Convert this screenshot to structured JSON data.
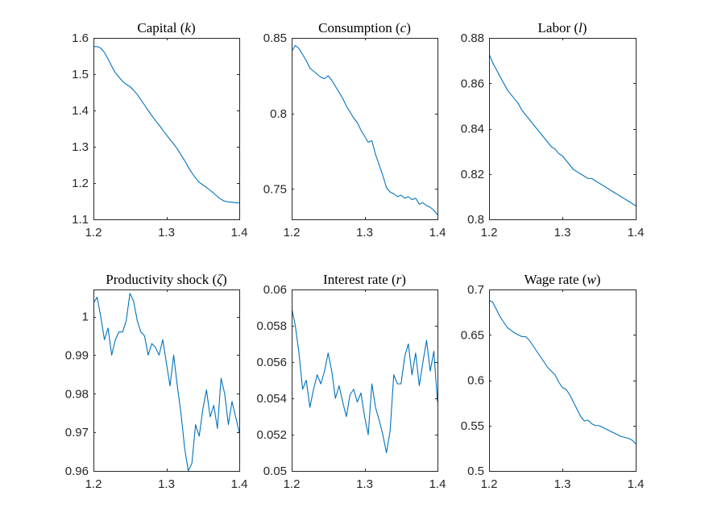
{
  "colors": {
    "line": "#0072BD",
    "axis": "#262626",
    "background": "#ffffff"
  },
  "chart_data": [
    {
      "type": "line",
      "title": {
        "name": "Capital",
        "symbol": "k"
      },
      "xlim": [
        1.2,
        1.4
      ],
      "ylim": [
        1.1,
        1.6
      ],
      "xticks": [
        1.2,
        1.3,
        1.4
      ],
      "xtick_labels": [
        "1.2",
        "1.3",
        "1.4"
      ],
      "yticks": [
        1.1,
        1.2,
        1.3,
        1.4,
        1.5,
        1.6
      ],
      "ytick_labels": [
        "1.1",
        "1.2",
        "1.3",
        "1.4",
        "1.5",
        "1.6"
      ],
      "x": [
        1.2,
        1.205,
        1.21,
        1.215,
        1.22,
        1.225,
        1.23,
        1.235,
        1.24,
        1.245,
        1.25,
        1.255,
        1.26,
        1.265,
        1.27,
        1.275,
        1.28,
        1.285,
        1.29,
        1.295,
        1.3,
        1.305,
        1.31,
        1.315,
        1.32,
        1.325,
        1.33,
        1.335,
        1.34,
        1.345,
        1.35,
        1.355,
        1.36,
        1.365,
        1.37,
        1.375,
        1.38,
        1.385,
        1.39,
        1.395,
        1.4
      ],
      "y": [
        1.576,
        1.576,
        1.572,
        1.56,
        1.542,
        1.522,
        1.504,
        1.492,
        1.48,
        1.472,
        1.466,
        1.456,
        1.444,
        1.43,
        1.415,
        1.4,
        1.386,
        1.372,
        1.36,
        1.346,
        1.333,
        1.32,
        1.308,
        1.294,
        1.278,
        1.262,
        1.244,
        1.228,
        1.214,
        1.202,
        1.195,
        1.188,
        1.18,
        1.172,
        1.163,
        1.155,
        1.15,
        1.148,
        1.147,
        1.146,
        1.145
      ]
    },
    {
      "type": "line",
      "title": {
        "name": "Consumption",
        "symbol": "c"
      },
      "xlim": [
        1.2,
        1.4
      ],
      "ylim": [
        0.73,
        0.85
      ],
      "xticks": [
        1.2,
        1.3,
        1.4
      ],
      "xtick_labels": [
        "1.2",
        "1.3",
        "1.4"
      ],
      "yticks": [
        0.75,
        0.8,
        0.85
      ],
      "ytick_labels": [
        "0.75",
        "0.8",
        "0.85"
      ],
      "x": [
        1.2,
        1.205,
        1.21,
        1.215,
        1.22,
        1.225,
        1.23,
        1.235,
        1.24,
        1.245,
        1.25,
        1.255,
        1.26,
        1.265,
        1.27,
        1.275,
        1.28,
        1.285,
        1.29,
        1.295,
        1.3,
        1.305,
        1.31,
        1.315,
        1.32,
        1.325,
        1.33,
        1.335,
        1.34,
        1.345,
        1.35,
        1.355,
        1.36,
        1.365,
        1.37,
        1.375,
        1.38,
        1.385,
        1.39,
        1.395,
        1.4
      ],
      "y": [
        0.841,
        0.845,
        0.843,
        0.839,
        0.835,
        0.83,
        0.828,
        0.826,
        0.824,
        0.823,
        0.825,
        0.822,
        0.818,
        0.814,
        0.81,
        0.805,
        0.801,
        0.797,
        0.794,
        0.789,
        0.785,
        0.781,
        0.782,
        0.773,
        0.766,
        0.759,
        0.751,
        0.748,
        0.747,
        0.745,
        0.746,
        0.744,
        0.745,
        0.743,
        0.744,
        0.74,
        0.741,
        0.739,
        0.738,
        0.736,
        0.733
      ]
    },
    {
      "type": "line",
      "title": {
        "name": "Labor",
        "symbol": "l"
      },
      "xlim": [
        1.2,
        1.4
      ],
      "ylim": [
        0.8,
        0.88
      ],
      "xticks": [
        1.2,
        1.3,
        1.4
      ],
      "xtick_labels": [
        "1.2",
        "1.3",
        "1.4"
      ],
      "yticks": [
        0.8,
        0.82,
        0.84,
        0.86,
        0.88
      ],
      "ytick_labels": [
        "0.8",
        "0.82",
        "0.84",
        "0.86",
        "0.88"
      ],
      "x": [
        1.2,
        1.205,
        1.21,
        1.215,
        1.22,
        1.225,
        1.23,
        1.235,
        1.24,
        1.245,
        1.25,
        1.255,
        1.26,
        1.265,
        1.27,
        1.275,
        1.28,
        1.285,
        1.29,
        1.295,
        1.3,
        1.305,
        1.31,
        1.315,
        1.32,
        1.325,
        1.33,
        1.335,
        1.34,
        1.345,
        1.35,
        1.355,
        1.36,
        1.365,
        1.37,
        1.375,
        1.38,
        1.385,
        1.39,
        1.395,
        1.4
      ],
      "y": [
        0.873,
        0.869,
        0.866,
        0.863,
        0.86,
        0.857,
        0.855,
        0.853,
        0.851,
        0.848,
        0.846,
        0.844,
        0.842,
        0.84,
        0.838,
        0.836,
        0.834,
        0.832,
        0.831,
        0.829,
        0.828,
        0.826,
        0.824,
        0.822,
        0.821,
        0.82,
        0.819,
        0.818,
        0.818,
        0.817,
        0.816,
        0.815,
        0.814,
        0.813,
        0.812,
        0.811,
        0.81,
        0.809,
        0.808,
        0.807,
        0.806
      ]
    },
    {
      "type": "line",
      "title": {
        "name": "Productivity shock",
        "symbol": "ζ"
      },
      "xlim": [
        1.2,
        1.4
      ],
      "ylim": [
        0.96,
        1.007
      ],
      "xticks": [
        1.2,
        1.3,
        1.4
      ],
      "xtick_labels": [
        "1.2",
        "1.3",
        "1.4"
      ],
      "yticks": [
        0.96,
        0.97,
        0.98,
        0.99,
        1.0
      ],
      "ytick_labels": [
        "0.96",
        "0.97",
        "0.98",
        "0.99",
        "1"
      ],
      "x": [
        1.2,
        1.205,
        1.21,
        1.215,
        1.22,
        1.225,
        1.23,
        1.235,
        1.24,
        1.245,
        1.25,
        1.255,
        1.26,
        1.265,
        1.27,
        1.275,
        1.28,
        1.285,
        1.29,
        1.295,
        1.3,
        1.305,
        1.31,
        1.315,
        1.32,
        1.325,
        1.33,
        1.335,
        1.34,
        1.345,
        1.35,
        1.355,
        1.36,
        1.365,
        1.37,
        1.375,
        1.38,
        1.385,
        1.39,
        1.395,
        1.4
      ],
      "y": [
        1.0035,
        1.005,
        1.0,
        0.994,
        0.997,
        0.99,
        0.994,
        0.996,
        0.996,
        0.999,
        1.006,
        1.004,
        0.999,
        0.996,
        0.995,
        0.99,
        0.993,
        0.992,
        0.99,
        0.994,
        0.988,
        0.982,
        0.99,
        0.982,
        0.975,
        0.966,
        0.96,
        0.962,
        0.972,
        0.969,
        0.976,
        0.981,
        0.974,
        0.977,
        0.971,
        0.984,
        0.98,
        0.972,
        0.978,
        0.974,
        0.97
      ]
    },
    {
      "type": "line",
      "title": {
        "name": "Interest rate",
        "symbol": "r"
      },
      "xlim": [
        1.2,
        1.4
      ],
      "ylim": [
        0.05,
        0.06
      ],
      "xticks": [
        1.2,
        1.3,
        1.4
      ],
      "xtick_labels": [
        "1.2",
        "1.3",
        "1.4"
      ],
      "yticks": [
        0.05,
        0.052,
        0.054,
        0.056,
        0.058,
        0.06
      ],
      "ytick_labels": [
        "0.05",
        "0.052",
        "0.054",
        "0.056",
        "0.058",
        "0.06"
      ],
      "x": [
        1.2,
        1.205,
        1.21,
        1.215,
        1.22,
        1.225,
        1.23,
        1.235,
        1.24,
        1.245,
        1.25,
        1.255,
        1.26,
        1.265,
        1.27,
        1.275,
        1.28,
        1.285,
        1.29,
        1.295,
        1.3,
        1.305,
        1.31,
        1.315,
        1.32,
        1.325,
        1.33,
        1.335,
        1.34,
        1.345,
        1.35,
        1.355,
        1.36,
        1.365,
        1.37,
        1.375,
        1.38,
        1.385,
        1.39,
        1.395,
        1.4
      ],
      "y": [
        0.059,
        0.058,
        0.0565,
        0.0545,
        0.055,
        0.0535,
        0.0545,
        0.0553,
        0.0548,
        0.0555,
        0.0565,
        0.0555,
        0.054,
        0.0547,
        0.0538,
        0.053,
        0.0542,
        0.0545,
        0.0538,
        0.0543,
        0.053,
        0.052,
        0.0548,
        0.0535,
        0.0528,
        0.052,
        0.051,
        0.0522,
        0.0553,
        0.0548,
        0.0548,
        0.0563,
        0.057,
        0.0553,
        0.0565,
        0.0547,
        0.056,
        0.0572,
        0.0555,
        0.0566,
        0.0538
      ]
    },
    {
      "type": "line",
      "title": {
        "name": "Wage rate",
        "symbol": "w"
      },
      "xlim": [
        1.2,
        1.4
      ],
      "ylim": [
        0.5,
        0.7
      ],
      "xticks": [
        1.2,
        1.3,
        1.4
      ],
      "xtick_labels": [
        "1.2",
        "1.3",
        "1.4"
      ],
      "yticks": [
        0.5,
        0.55,
        0.6,
        0.65,
        0.7
      ],
      "ytick_labels": [
        "0.5",
        "0.55",
        "0.6",
        "0.65",
        "0.7"
      ],
      "x": [
        1.2,
        1.205,
        1.21,
        1.215,
        1.22,
        1.225,
        1.23,
        1.235,
        1.24,
        1.245,
        1.25,
        1.255,
        1.26,
        1.265,
        1.27,
        1.275,
        1.28,
        1.285,
        1.29,
        1.295,
        1.3,
        1.305,
        1.31,
        1.315,
        1.32,
        1.325,
        1.33,
        1.335,
        1.34,
        1.345,
        1.35,
        1.355,
        1.36,
        1.365,
        1.37,
        1.375,
        1.38,
        1.385,
        1.39,
        1.395,
        1.4
      ],
      "y": [
        0.688,
        0.686,
        0.678,
        0.67,
        0.664,
        0.658,
        0.655,
        0.652,
        0.65,
        0.648,
        0.648,
        0.644,
        0.638,
        0.632,
        0.626,
        0.62,
        0.614,
        0.61,
        0.606,
        0.598,
        0.592,
        0.59,
        0.584,
        0.576,
        0.568,
        0.56,
        0.555,
        0.556,
        0.552,
        0.55,
        0.55,
        0.548,
        0.546,
        0.544,
        0.542,
        0.54,
        0.538,
        0.537,
        0.536,
        0.534,
        0.53
      ]
    }
  ]
}
